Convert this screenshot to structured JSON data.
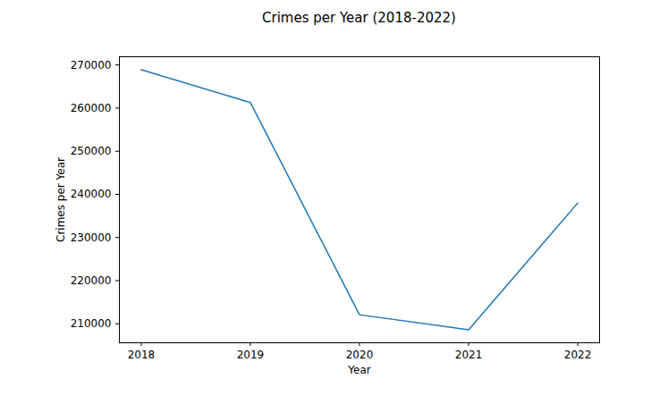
{
  "chart_data": {
    "type": "line",
    "title": "Crimes per Year (2018-2022)",
    "x_label": "Year",
    "y_label": "Crimes per Year",
    "x": [
      2018,
      2019,
      2020,
      2021,
      2022
    ],
    "values": [
      268900,
      261300,
      212100,
      208600,
      238000
    ],
    "color": "#1f77b4",
    "xlim": [
      2017.8,
      2022.2
    ],
    "xticks": [
      2018,
      2019,
      2020,
      2021,
      2022
    ],
    "ylim": [
      205600,
      271900
    ],
    "yticks": [
      210000,
      220000,
      230000,
      240000,
      250000,
      260000,
      270000
    ],
    "grid": false
  }
}
